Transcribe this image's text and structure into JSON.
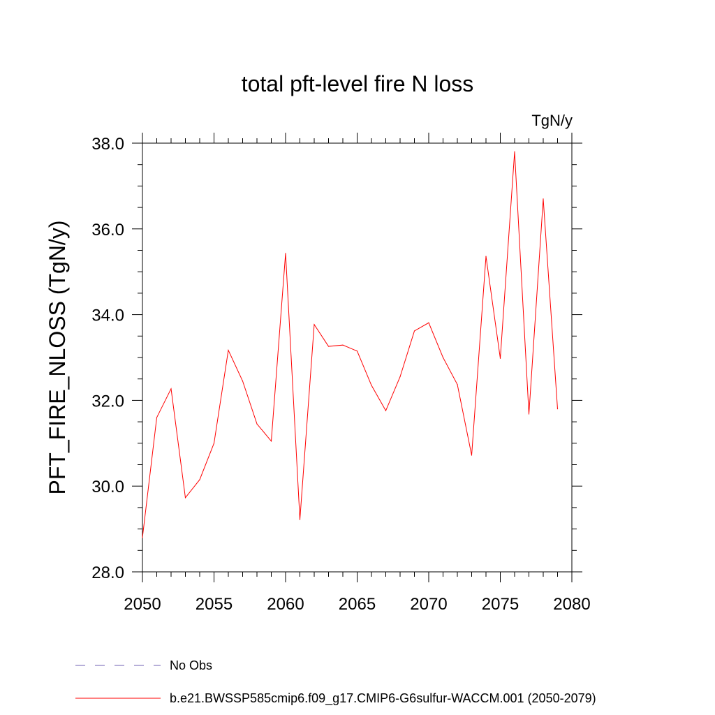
{
  "chart_data": {
    "type": "line",
    "title": "total pft-level fire N loss",
    "units_label": "TgN/y",
    "ylabel": "PFT_FIRE_NLOSS  (TgN/y)",
    "xlabel": "",
    "xlim": [
      2050,
      2080
    ],
    "ylim": [
      28.0,
      38.0
    ],
    "x_ticks": [
      2050,
      2055,
      2060,
      2065,
      2070,
      2075,
      2080
    ],
    "x_tick_labels": [
      "2050",
      "2055",
      "2060",
      "2065",
      "2070",
      "2075",
      "2080"
    ],
    "y_ticks": [
      28.0,
      30.0,
      32.0,
      34.0,
      36.0,
      38.0
    ],
    "y_tick_labels": [
      "28.0",
      "30.0",
      "32.0",
      "34.0",
      "36.0",
      "38.0"
    ],
    "grid": false,
    "legend_placement": "bottom-left",
    "series": [
      {
        "name": "b.e21.BWSSP585cmip6.f09_g17.CMIP6-G6sulfur-WACCM.001 (2050-2079)",
        "color": "#ff0000",
        "style": "solid",
        "x": [
          2050,
          2051,
          2052,
          2053,
          2054,
          2055,
          2056,
          2057,
          2058,
          2059,
          2060,
          2061,
          2062,
          2063,
          2064,
          2065,
          2066,
          2067,
          2068,
          2069,
          2070,
          2071,
          2072,
          2073,
          2074,
          2075,
          2076,
          2077,
          2078,
          2079
        ],
        "values": [
          28.8,
          31.6,
          32.27,
          29.73,
          30.15,
          31.0,
          33.17,
          32.45,
          31.45,
          31.05,
          35.43,
          29.22,
          33.77,
          33.26,
          33.29,
          33.15,
          32.35,
          31.76,
          32.55,
          33.62,
          33.81,
          33.0,
          32.37,
          30.72,
          35.36,
          32.98,
          37.8,
          31.68,
          36.7,
          31.8
        ]
      }
    ],
    "legend": [
      {
        "label": "No Obs",
        "color": "#6f5fb3",
        "style": "dashed"
      },
      {
        "label": "b.e21.BWSSP585cmip6.f09_g17.CMIP6-G6sulfur-WACCM.001 (2050-2079)",
        "color": "#ff0000",
        "style": "solid"
      }
    ]
  }
}
